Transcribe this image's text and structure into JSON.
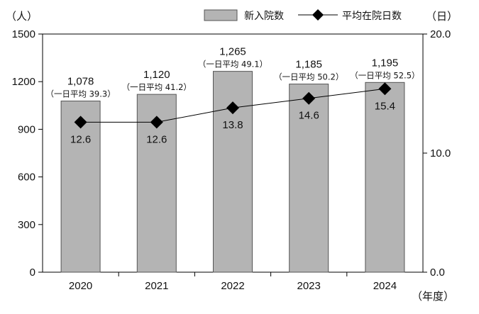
{
  "chart_data": {
    "type": "bar+line",
    "categories": [
      "2020",
      "2021",
      "2022",
      "2023",
      "2024"
    ],
    "series": [
      {
        "name": "新入院数",
        "type": "bar",
        "axis": "left",
        "values": [
          1078,
          1120,
          1265,
          1185,
          1195
        ],
        "value_labels": [
          "1,078",
          "1,120",
          "1,265",
          "1,185",
          "1,195"
        ],
        "daily_labels": [
          "（一日平均 39.3）",
          "（一日平均 41.2）",
          "（一日平均 49.1）",
          "（一日平均 50.2）",
          "（一日平均 52.5）"
        ],
        "color": "#b4b4b4"
      },
      {
        "name": "平均在院日数",
        "type": "line",
        "axis": "right",
        "marker": "diamond",
        "values": [
          12.6,
          12.6,
          13.8,
          14.6,
          15.4
        ],
        "value_labels": [
          "12.6",
          "12.6",
          "13.8",
          "14.6",
          "15.4"
        ],
        "color": "#000000"
      }
    ],
    "y_left": {
      "unit_label": "（人）",
      "ylim": [
        0,
        1500
      ],
      "ticks": [
        0,
        300,
        600,
        900,
        1200,
        1500
      ],
      "tick_labels": [
        "0",
        "300",
        "600",
        "900",
        "1200",
        "1500"
      ]
    },
    "y_right": {
      "unit_label": "（日）",
      "ylim": [
        0,
        20
      ],
      "ticks": [
        0,
        10,
        20
      ],
      "tick_labels": [
        "0.0",
        "10.0",
        "20.0"
      ]
    },
    "x_unit_label": "（年度）",
    "legend_placement": "top-right",
    "grid": false
  }
}
